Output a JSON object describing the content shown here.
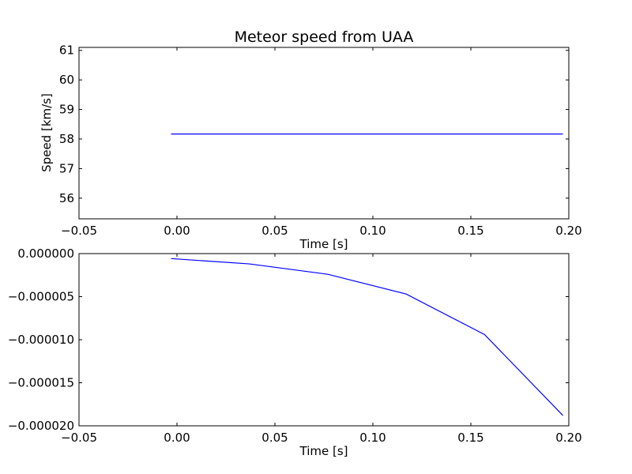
{
  "chart_data": [
    {
      "type": "line",
      "title": "Meteor speed from  UAA",
      "xlabel": "Time [s]",
      "ylabel": "Speed [km/s]",
      "xlim": [
        -0.05,
        0.2
      ],
      "ylim": [
        55.3,
        61.1
      ],
      "xticks": [
        -0.05,
        0.0,
        0.05,
        0.1,
        0.15,
        0.2
      ],
      "xtick_labels": [
        "−0.05",
        "0.00",
        "0.05",
        "0.10",
        "0.15",
        "0.20"
      ],
      "yticks": [
        56,
        57,
        58,
        59,
        60,
        61
      ],
      "ytick_labels": [
        "56",
        "57",
        "58",
        "59",
        "60",
        "61"
      ],
      "grid": false,
      "color": "#0000ff",
      "series": [
        {
          "x": [
            -0.003,
            0.197
          ],
          "y": [
            58.17,
            58.17
          ]
        }
      ]
    },
    {
      "type": "line",
      "title": "",
      "xlabel": "Time [s]",
      "ylabel": "",
      "xlim": [
        -0.05,
        0.2
      ],
      "ylim": [
        -2e-05,
        0.0
      ],
      "xticks": [
        -0.05,
        0.0,
        0.05,
        0.1,
        0.15,
        0.2
      ],
      "xtick_labels": [
        "−0.05",
        "0.00",
        "0.05",
        "0.10",
        "0.15",
        "0.20"
      ],
      "yticks": [
        -2e-05,
        -1.5e-05,
        -1e-05,
        -5e-06,
        0.0
      ],
      "ytick_labels": [
        "−0.000020",
        "−0.000015",
        "−0.000010",
        "−0.000005",
        "0.000000"
      ],
      "grid": false,
      "color": "#0000ff",
      "series": [
        {
          "x": [
            -0.003,
            0.037,
            0.077,
            0.117,
            0.157,
            0.197
          ],
          "y": [
            -5.8e-07,
            -1.2e-06,
            -2.4e-06,
            -4.7e-06,
            -9.4e-06,
            -1.88e-05
          ]
        }
      ]
    }
  ]
}
